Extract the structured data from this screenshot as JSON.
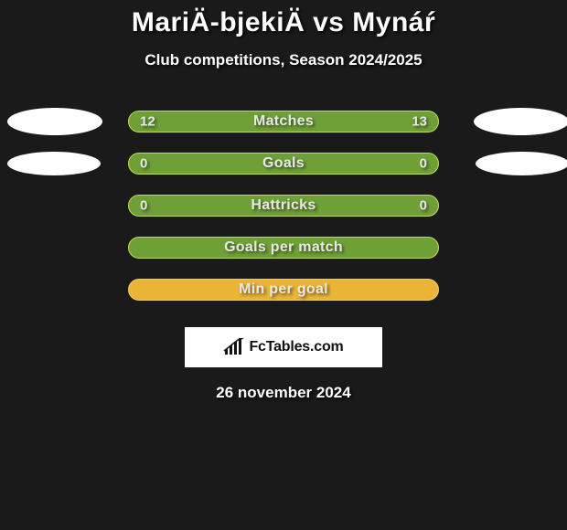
{
  "title": "MariÄ-bjekiÄ vs Mynáŕ",
  "subtitle": "Club competitions, Season 2024/2025",
  "date": "26 november 2024",
  "logo_text": "FcTables.com",
  "colors": {
    "bg": "#1a1a1a",
    "pill_green_fill": "#6fa038",
    "pill_green_border": "#c6d95a",
    "pill_orange_fill": "#eab537",
    "pill_orange_border": "#f0cc6a",
    "ellipse": "#ffffff",
    "text": "#ffffff"
  },
  "rows": [
    {
      "label": "Matches",
      "left": "12",
      "right": "13",
      "color": "green",
      "ellipse_left": true,
      "ellipse_right": true,
      "ellipse_size": "big"
    },
    {
      "label": "Goals",
      "left": "0",
      "right": "0",
      "color": "green",
      "ellipse_left": true,
      "ellipse_right": true,
      "ellipse_size": "small"
    },
    {
      "label": "Hattricks",
      "left": "0",
      "right": "0",
      "color": "green",
      "ellipse_left": false,
      "ellipse_right": false
    },
    {
      "label": "Goals per match",
      "left": "",
      "right": "",
      "color": "green",
      "ellipse_left": false,
      "ellipse_right": false
    },
    {
      "label": "Min per goal",
      "left": "",
      "right": "",
      "color": "orange",
      "ellipse_left": false,
      "ellipse_right": false
    }
  ]
}
